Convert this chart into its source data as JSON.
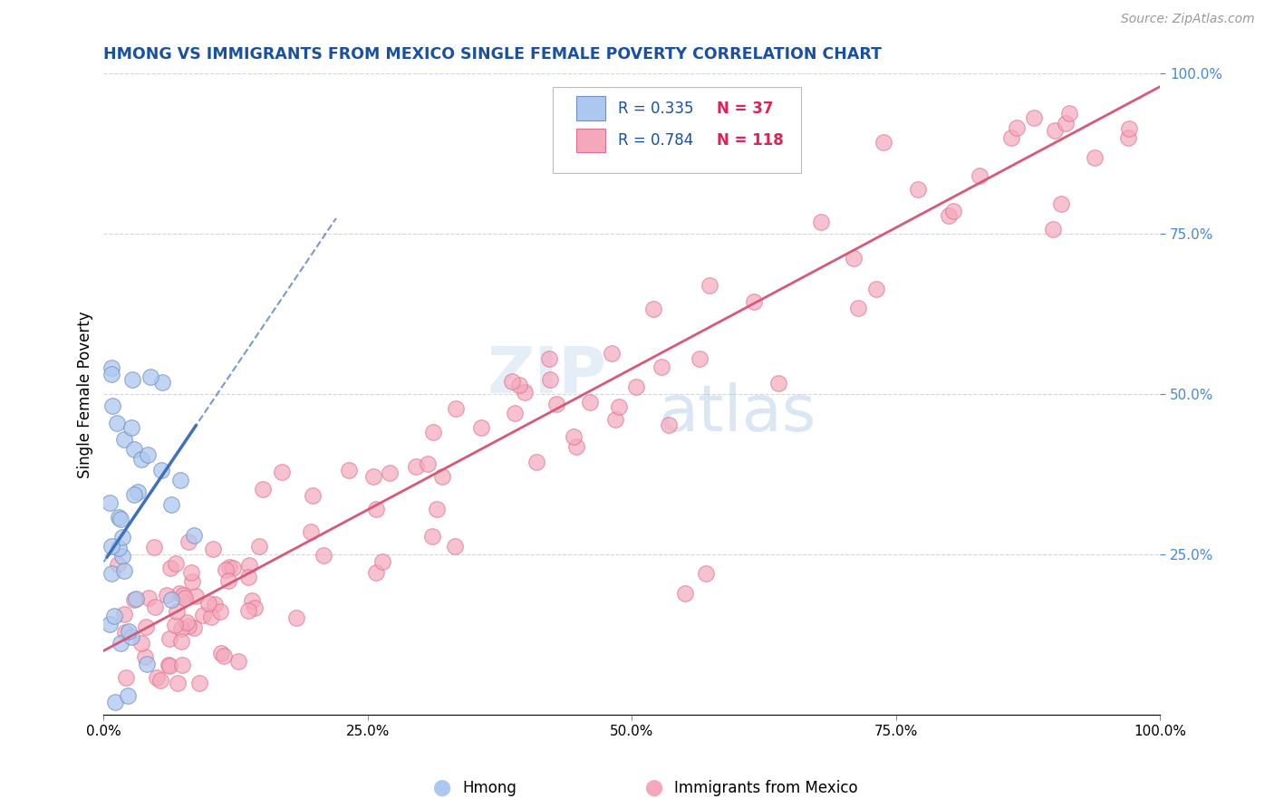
{
  "title": "HMONG VS IMMIGRANTS FROM MEXICO SINGLE FEMALE POVERTY CORRELATION CHART",
  "source": "Source: ZipAtlas.com",
  "ylabel": "Single Female Poverty",
  "xlim": [
    0.0,
    1.0
  ],
  "ylim": [
    0.0,
    1.0
  ],
  "xtick_labels": [
    "0.0%",
    "25.0%",
    "50.0%",
    "75.0%",
    "100.0%"
  ],
  "xtick_positions": [
    0.0,
    0.25,
    0.5,
    0.75,
    1.0
  ],
  "ytick_labels_right": [
    "100.0%",
    "75.0%",
    "50.0%",
    "25.0%"
  ],
  "ytick_positions_right": [
    1.0,
    0.75,
    0.5,
    0.25
  ],
  "hmong_color": "#adc8f0",
  "mexico_color": "#f5a8bc",
  "hmong_edge": "#7090c0",
  "mexico_edge": "#e07090",
  "trend_hmong_color": "#4070b8",
  "trend_mexico_color": "#d85878",
  "R_hmong": 0.335,
  "N_hmong": 37,
  "R_mexico": 0.784,
  "N_mexico": 118,
  "watermark_zip": "ZIP",
  "watermark_atlas": "atlas",
  "background_color": "#ffffff",
  "grid_color": "#cccccc",
  "title_color": "#1a50a0",
  "axis_color": "#4488dd",
  "legend_R_color": "#1a50a0",
  "legend_N_color": "#dd2255"
}
